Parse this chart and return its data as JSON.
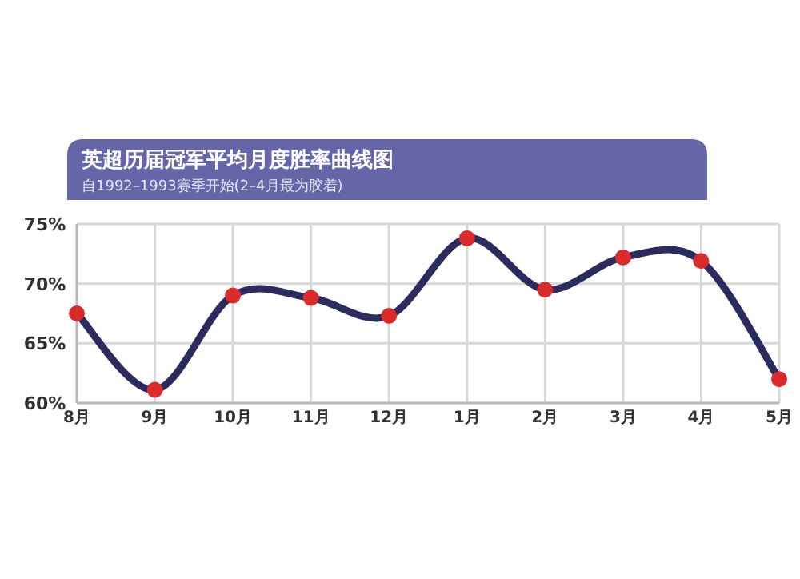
{
  "chart_data": {
    "type": "line",
    "title": "英超历届冠军平均月度胜率曲线图",
    "subtitle": "自1992–1993赛季开始(2–4月最为胶着)",
    "categories": [
      "8月",
      "9月",
      "10月",
      "11月",
      "12月",
      "1月",
      "2月",
      "3月",
      "4月",
      "5月"
    ],
    "series": [
      {
        "color": "#2b2b5e",
        "colors": [
          "#d92b2b",
          "#d92b2b",
          "#d92b2b",
          "#d92b2b",
          "#d92b2b",
          "#d92b2b",
          "#d92b2b",
          "#d92b2b",
          "#d92b2b",
          "#d92b2b"
        ],
        "values": [
          67.5,
          61.1,
          69.0,
          68.8,
          67.3,
          73.8,
          69.5,
          72.2,
          71.9,
          62.0
        ]
      }
    ],
    "ylim": [
      60,
      75
    ],
    "yticks": [
      {
        "value": 60,
        "label": "60%"
      },
      {
        "value": 65,
        "label": "65%"
      },
      {
        "value": 70,
        "label": "70%"
      },
      {
        "value": 75,
        "label": "75%"
      }
    ],
    "grid": true,
    "marker": "circle",
    "line_style": "solid"
  }
}
